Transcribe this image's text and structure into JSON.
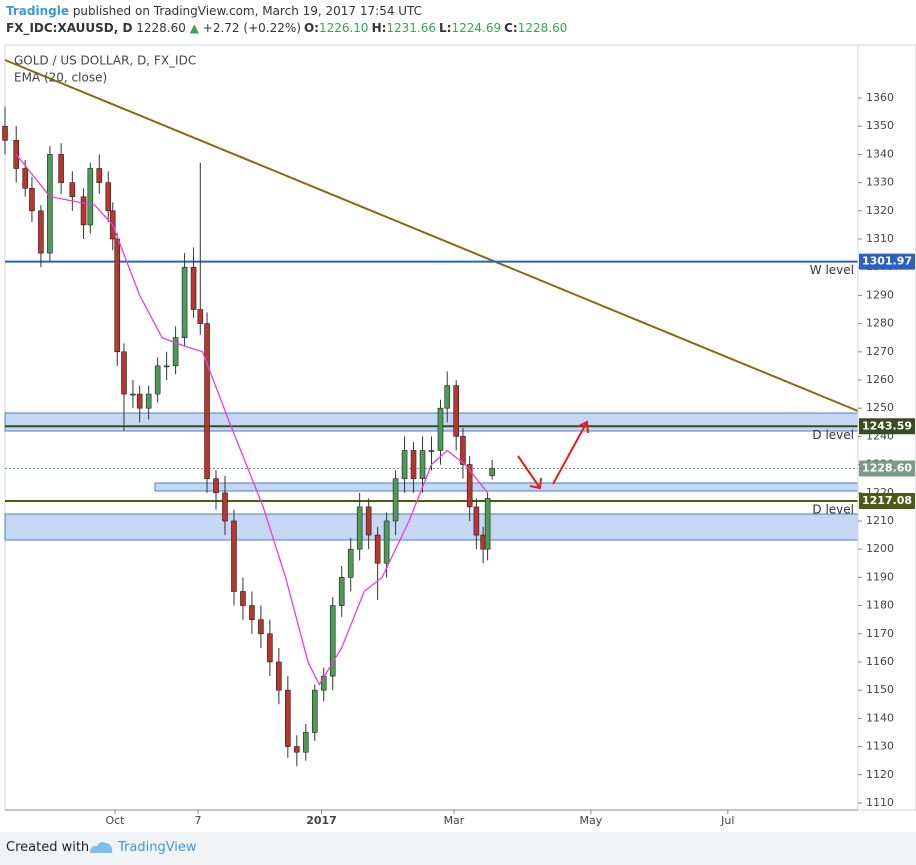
{
  "header": {
    "author": "Tradingle",
    "published": "published on TradingView.com, March 19, 2017 17:54 UTC",
    "symbol": "FX_IDC:XAUUSD, D",
    "price": "1228.60",
    "change": "+2.72 (+0.22%)",
    "ohlc": [
      {
        "label": "O:",
        "value": "1226.10"
      },
      {
        "label": "H:",
        "value": "1231.66"
      },
      {
        "label": "L:",
        "value": "1224.69"
      },
      {
        "label": "C:",
        "value": "1228.60"
      }
    ]
  },
  "footer": {
    "created_with": "Created with",
    "brand": "TradingView"
  },
  "chart_data": {
    "type": "candlestick",
    "title": "GOLD / US DOLLAR, D, FX_IDC",
    "x": [
      0,
      5,
      9,
      12,
      16,
      20,
      25,
      30,
      35,
      38,
      42,
      46,
      48,
      50,
      53,
      57,
      60,
      64,
      68,
      72,
      76,
      80,
      84,
      87,
      90,
      94,
      98,
      102,
      106,
      110,
      114,
      118,
      122,
      126,
      130,
      134,
      138,
      142,
      146,
      150,
      154,
      158,
      162,
      166,
      170,
      174,
      178,
      182,
      186,
      190,
      194,
      197,
      201,
      204,
      207,
      210,
      213,
      215,
      217
    ],
    "open": [
      1350,
      1345,
      1335,
      1328,
      1320,
      1305,
      1340,
      1330,
      1325,
      1315,
      1335,
      1330,
      1320,
      1310,
      1270,
      1255,
      1255,
      1250,
      1255,
      1265,
      1265,
      1275,
      1300,
      1285,
      1280,
      1225,
      1220,
      1210,
      1185,
      1180,
      1175,
      1170,
      1160,
      1150,
      1130,
      1128,
      1135,
      1150,
      1155,
      1180,
      1190,
      1200,
      1215,
      1205,
      1195,
      1210,
      1225,
      1235,
      1225,
      1235,
      1235,
      1250,
      1258,
      1240,
      1230,
      1215,
      1205,
      1200,
      1226.1
    ],
    "high": [
      1357,
      1350,
      1338,
      1332,
      1322,
      1343,
      1344,
      1334,
      1328,
      1337,
      1340,
      1334,
      1323,
      1312,
      1273,
      1260,
      1258,
      1258,
      1268,
      1270,
      1279,
      1305,
      1307,
      1337,
      1284,
      1228,
      1226,
      1214,
      1190,
      1185,
      1180,
      1175,
      1165,
      1155,
      1134,
      1138,
      1152,
      1158,
      1183,
      1194,
      1204,
      1220,
      1218,
      1208,
      1213,
      1228,
      1240,
      1238,
      1240,
      1240,
      1253,
      1263,
      1260,
      1243,
      1233,
      1218,
      1208,
      1220,
      1231.66
    ],
    "low": [
      1340,
      1330,
      1325,
      1316,
      1300,
      1302,
      1326,
      1320,
      1310,
      1312,
      1326,
      1316,
      1306,
      1265,
      1242,
      1250,
      1245,
      1246,
      1252,
      1260,
      1262,
      1272,
      1282,
      1276,
      1220,
      1214,
      1205,
      1180,
      1175,
      1170,
      1165,
      1155,
      1145,
      1126,
      1123,
      1125,
      1132,
      1146,
      1150,
      1176,
      1185,
      1196,
      1200,
      1182,
      1190,
      1205,
      1220,
      1220,
      1220,
      1228,
      1230,
      1245,
      1235,
      1225,
      1210,
      1200,
      1195,
      1196,
      1224.69
    ],
    "close": [
      1345,
      1335,
      1328,
      1320,
      1305,
      1340,
      1330,
      1325,
      1315,
      1335,
      1330,
      1320,
      1310,
      1270,
      1255,
      1255,
      1250,
      1255,
      1265,
      1265,
      1275,
      1300,
      1285,
      1280,
      1225,
      1220,
      1210,
      1185,
      1180,
      1175,
      1170,
      1160,
      1150,
      1130,
      1128,
      1135,
      1150,
      1155,
      1180,
      1190,
      1200,
      1215,
      1205,
      1195,
      1210,
      1225,
      1235,
      1225,
      1235,
      1235,
      1250,
      1258,
      1240,
      1230,
      1215,
      1205,
      1200,
      1218,
      1228.6
    ],
    "up_color": "#4e9a57",
    "down_color": "#b7372f",
    "series": [
      {
        "name": "EMA (20, close)",
        "color": "#e83fd8",
        "x": [
          5,
          20,
          40,
          48,
          60,
          70,
          80,
          88,
          100,
          115,
          125,
          135,
          140,
          150,
          160,
          168,
          180,
          190,
          197,
          205,
          215
        ],
        "values": [
          1340,
          1325,
          1322,
          1315,
          1290,
          1275,
          1272,
          1270,
          1245,
          1215,
          1190,
          1160,
          1152,
          1165,
          1185,
          1190,
          1210,
          1230,
          1235,
          1230,
          1220
        ]
      }
    ],
    "price_lines": [
      {
        "name": "W level",
        "value": 1301.97,
        "color": "#2c5fbf"
      },
      {
        "name": "D level",
        "value": 1243.59,
        "color": "#3a4a22"
      },
      {
        "value": 1228.6,
        "label": "1228.60",
        "color": "#7c9b86"
      },
      {
        "name": "D level",
        "value": 1217.08,
        "color": "#4d5a16"
      }
    ],
    "xlim": [
      0,
      380
    ],
    "xticks": [
      {
        "value": 49,
        "label": "Oct"
      },
      {
        "value": 86,
        "label": "7"
      },
      {
        "value": 141,
        "label": "2017"
      },
      {
        "value": 200,
        "label": "Mar"
      },
      {
        "value": 261,
        "label": "May"
      },
      {
        "value": 322,
        "label": "Jul"
      }
    ],
    "ylim": [
      1107.5,
      1378.8
    ],
    "yticks": [
      1110,
      1120,
      1130,
      1140,
      1150,
      1160,
      1170,
      1180,
      1190,
      1200,
      1210,
      1220,
      1230,
      1240,
      1250,
      1260,
      1270,
      1280,
      1290,
      1300,
      1310,
      1320,
      1330,
      1340,
      1350,
      1360
    ]
  }
}
